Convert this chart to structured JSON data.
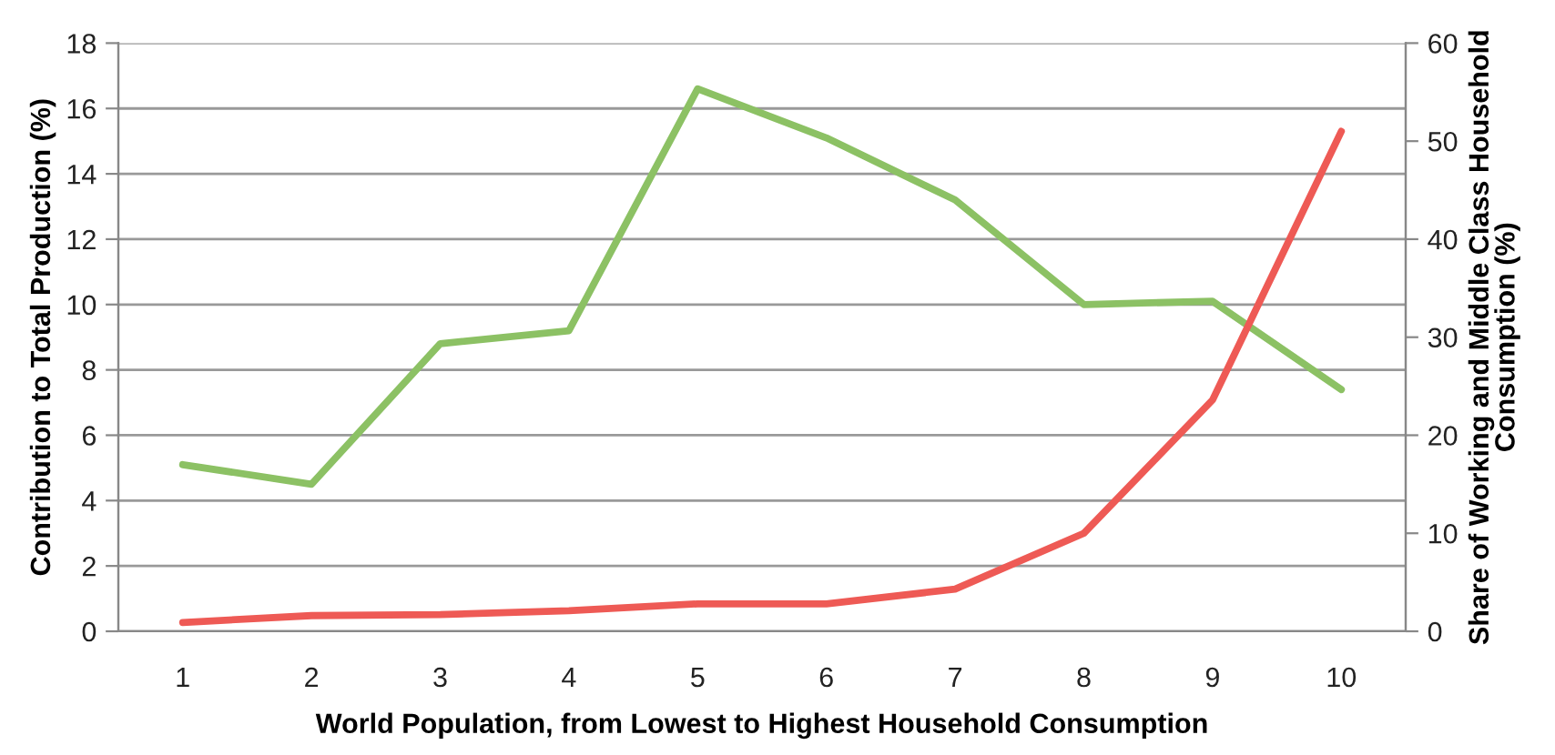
{
  "chart_data": {
    "type": "line",
    "xlabel": "World Population, from Lowest to Highest Household Consumption",
    "ylabel": "Contribution to Total Production (%)",
    "y2label": "Share of Working and Middle Class Household\nConsumption (%)",
    "categories": [
      "1",
      "2",
      "3",
      "4",
      "5",
      "6",
      "7",
      "8",
      "9",
      "10"
    ],
    "series": [
      {
        "color": "#8cc164",
        "values": [
          5.1,
          4.5,
          8.8,
          9.2,
          16.6,
          15.1,
          13.2,
          10.0,
          10.1,
          7.4
        ]
      },
      {
        "color": "#ee5a55",
        "axis": "y2",
        "values": [
          0.9,
          1.6,
          1.7,
          2.1,
          2.8,
          2.8,
          4.3,
          10.0,
          23.6,
          51
        ]
      }
    ],
    "ylim": [
      0,
      18
    ],
    "yticks": [
      0,
      2,
      4,
      6,
      8,
      10,
      12,
      14,
      16,
      18
    ],
    "y2lim": [
      0,
      60
    ],
    "y2ticks": [
      0,
      10,
      20,
      30,
      40,
      50,
      60
    ],
    "grid": "y"
  }
}
